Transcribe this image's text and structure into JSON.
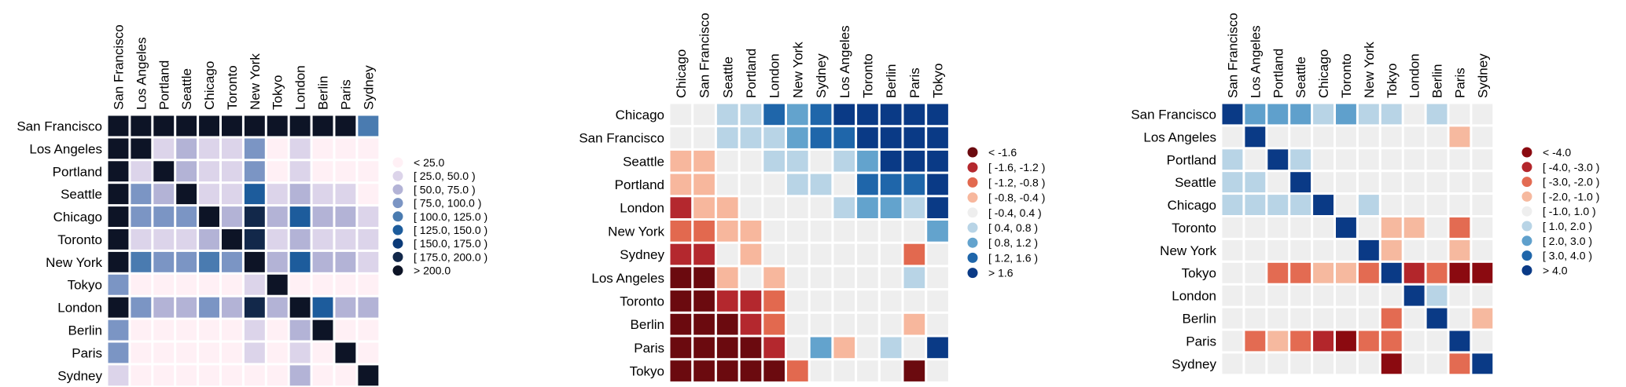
{
  "colors": {
    "palette1": [
      "#fff0f5",
      "#dcd4ea",
      "#b3b3d6",
      "#7b95c4",
      "#4a7bb0",
      "#1d5c9c",
      "#0b3a78",
      "#12284a",
      "#0d1426"
    ],
    "palette2": [
      "#6b0a0f",
      "#b4282e",
      "#e2694f",
      "#f7b79d",
      "#eeeeee",
      "#b8d4e6",
      "#63a3cd",
      "#1f66aa",
      "#0a3a86"
    ],
    "palette3": [
      "#8b0a10",
      "#b3262b",
      "#e36b52",
      "#f6b99f",
      "#eeeeee",
      "#b8d4e6",
      "#5fa0cc",
      "#1f66aa",
      "#0a3a86"
    ]
  },
  "chart_data": [
    {
      "type": "heatmap",
      "rows": [
        "San Francisco",
        "Los Angeles",
        "Portland",
        "Seattle",
        "Chicago",
        "Toronto",
        "New York",
        "Tokyo",
        "London",
        "Berlin",
        "Paris",
        "Sydney"
      ],
      "columns": [
        "San Francisco",
        "Los Angeles",
        "Portland",
        "Seattle",
        "Chicago",
        "Toronto",
        "New York",
        "Tokyo",
        "London",
        "Berlin",
        "Paris",
        "Sydney"
      ],
      "values": [
        [
          8,
          8,
          8,
          8,
          8,
          8,
          8,
          8,
          8,
          8,
          8,
          4
        ],
        [
          8,
          8,
          1,
          2,
          1,
          1,
          3,
          0,
          1,
          0,
          0,
          0
        ],
        [
          8,
          1,
          8,
          2,
          1,
          1,
          3,
          0,
          1,
          0,
          0,
          0
        ],
        [
          8,
          3,
          2,
          8,
          1,
          1,
          5,
          1,
          2,
          1,
          1,
          0
        ],
        [
          8,
          3,
          3,
          3,
          8,
          2,
          7,
          2,
          5,
          2,
          2,
          1
        ],
        [
          8,
          1,
          1,
          1,
          2,
          8,
          7,
          1,
          2,
          1,
          1,
          1
        ],
        [
          8,
          4,
          3,
          3,
          4,
          3,
          8,
          2,
          5,
          2,
          2,
          1
        ],
        [
          3,
          0,
          0,
          0,
          0,
          0,
          1,
          8,
          0,
          0,
          0,
          0
        ],
        [
          8,
          3,
          2,
          2,
          3,
          2,
          7,
          2,
          8,
          5,
          2,
          2
        ],
        [
          3,
          0,
          0,
          0,
          0,
          0,
          1,
          0,
          2,
          8,
          0,
          0
        ],
        [
          3,
          0,
          0,
          0,
          0,
          0,
          1,
          0,
          1,
          0,
          8,
          0
        ],
        [
          1,
          0,
          0,
          0,
          0,
          0,
          0,
          0,
          2,
          0,
          0,
          8
        ]
      ],
      "legend": [
        "< 25.0",
        "[ 25.0, 50.0 )",
        "[ 50.0, 75.0 )",
        "[ 75.0, 100.0 )",
        "[ 100.0, 125.0 )",
        "[ 125.0, 150.0 )",
        "[ 150.0, 175.0 )",
        "[ 175.0, 200.0 )",
        "> 200.0"
      ],
      "legend_position": "right"
    },
    {
      "type": "heatmap",
      "rows": [
        "Chicago",
        "San Francisco",
        "Seattle",
        "Portland",
        "London",
        "New York",
        "Sydney",
        "Los Angeles",
        "Toronto",
        "Berlin",
        "Paris",
        "Tokyo"
      ],
      "columns": [
        "Chicago",
        "San Francisco",
        "Seattle",
        "Portland",
        "London",
        "New York",
        "Sydney",
        "Los Angeles",
        "Toronto",
        "Berlin",
        "Paris",
        "Tokyo"
      ],
      "values": [
        [
          4,
          4,
          5,
          5,
          7,
          6,
          7,
          8,
          8,
          8,
          8,
          8
        ],
        [
          4,
          4,
          5,
          5,
          5,
          6,
          7,
          7,
          8,
          8,
          8,
          8
        ],
        [
          3,
          3,
          4,
          4,
          5,
          5,
          4,
          5,
          6,
          8,
          8,
          8
        ],
        [
          3,
          3,
          4,
          4,
          4,
          5,
          5,
          4,
          7,
          7,
          7,
          8
        ],
        [
          1,
          3,
          3,
          4,
          4,
          4,
          4,
          5,
          6,
          6,
          5,
          8
        ],
        [
          2,
          2,
          3,
          3,
          4,
          4,
          4,
          4,
          4,
          4,
          4,
          6
        ],
        [
          1,
          1,
          4,
          3,
          4,
          4,
          4,
          4,
          4,
          4,
          2,
          4
        ],
        [
          0,
          0,
          3,
          4,
          3,
          4,
          4,
          4,
          4,
          4,
          5,
          4
        ],
        [
          0,
          0,
          1,
          1,
          2,
          4,
          4,
          4,
          4,
          4,
          4,
          4
        ],
        [
          0,
          0,
          0,
          1,
          2,
          4,
          4,
          4,
          4,
          4,
          3,
          4
        ],
        [
          0,
          0,
          0,
          0,
          1,
          4,
          6,
          3,
          4,
          5,
          4,
          8
        ],
        [
          0,
          0,
          0,
          0,
          0,
          2,
          4,
          4,
          4,
          4,
          0,
          4
        ]
      ],
      "legend": [
        "< -1.6",
        "[ -1.6, -1.2 )",
        "[ -1.2, -0.8 )",
        "[ -0.8, -0.4 )",
        "[ -0.4, 0.4 )",
        "[ 0.4, 0.8 )",
        "[ 0.8, 1.2 )",
        "[ 1.2, 1.6 )",
        "> 1.6"
      ],
      "legend_position": "right"
    },
    {
      "type": "heatmap",
      "rows": [
        "San Francisco",
        "Los Angeles",
        "Portland",
        "Seattle",
        "Chicago",
        "Toronto",
        "New York",
        "Tokyo",
        "London",
        "Berlin",
        "Paris",
        "Sydney"
      ],
      "columns": [
        "San Francisco",
        "Los Angeles",
        "Portland",
        "Seattle",
        "Chicago",
        "Toronto",
        "New York",
        "Tokyo",
        "London",
        "Berlin",
        "Paris",
        "Sydney"
      ],
      "values": [
        [
          8,
          6,
          6,
          6,
          5,
          6,
          5,
          5,
          4,
          5,
          4,
          4
        ],
        [
          4,
          8,
          4,
          4,
          4,
          4,
          4,
          4,
          4,
          4,
          3,
          4
        ],
        [
          5,
          4,
          8,
          5,
          4,
          4,
          4,
          4,
          4,
          4,
          4,
          4
        ],
        [
          5,
          5,
          4,
          8,
          4,
          4,
          4,
          4,
          4,
          4,
          4,
          4
        ],
        [
          5,
          5,
          5,
          5,
          8,
          4,
          5,
          4,
          4,
          4,
          4,
          4
        ],
        [
          4,
          4,
          4,
          4,
          4,
          8,
          4,
          3,
          3,
          4,
          2,
          4
        ],
        [
          4,
          4,
          4,
          4,
          4,
          4,
          8,
          3,
          4,
          4,
          3,
          4
        ],
        [
          4,
          4,
          2,
          2,
          3,
          3,
          2,
          8,
          1,
          2,
          0,
          0
        ],
        [
          4,
          4,
          4,
          4,
          4,
          4,
          4,
          4,
          8,
          5,
          4,
          4
        ],
        [
          4,
          4,
          4,
          4,
          4,
          4,
          4,
          2,
          4,
          8,
          4,
          3
        ],
        [
          4,
          2,
          3,
          2,
          1,
          0,
          2,
          2,
          4,
          4,
          8,
          4
        ],
        [
          4,
          4,
          4,
          4,
          4,
          4,
          4,
          0,
          4,
          4,
          2,
          8
        ]
      ],
      "legend": [
        "< -4.0",
        "[ -4.0, -3.0 )",
        "[ -3.0, -2.0 )",
        "[ -2.0, -1.0 )",
        "[ -1.0, 1.0 )",
        "[ 1.0, 2.0 )",
        "[ 2.0, 3.0 )",
        "[ 3.0, 4.0 )",
        "> 4.0"
      ],
      "legend_position": "right"
    }
  ]
}
